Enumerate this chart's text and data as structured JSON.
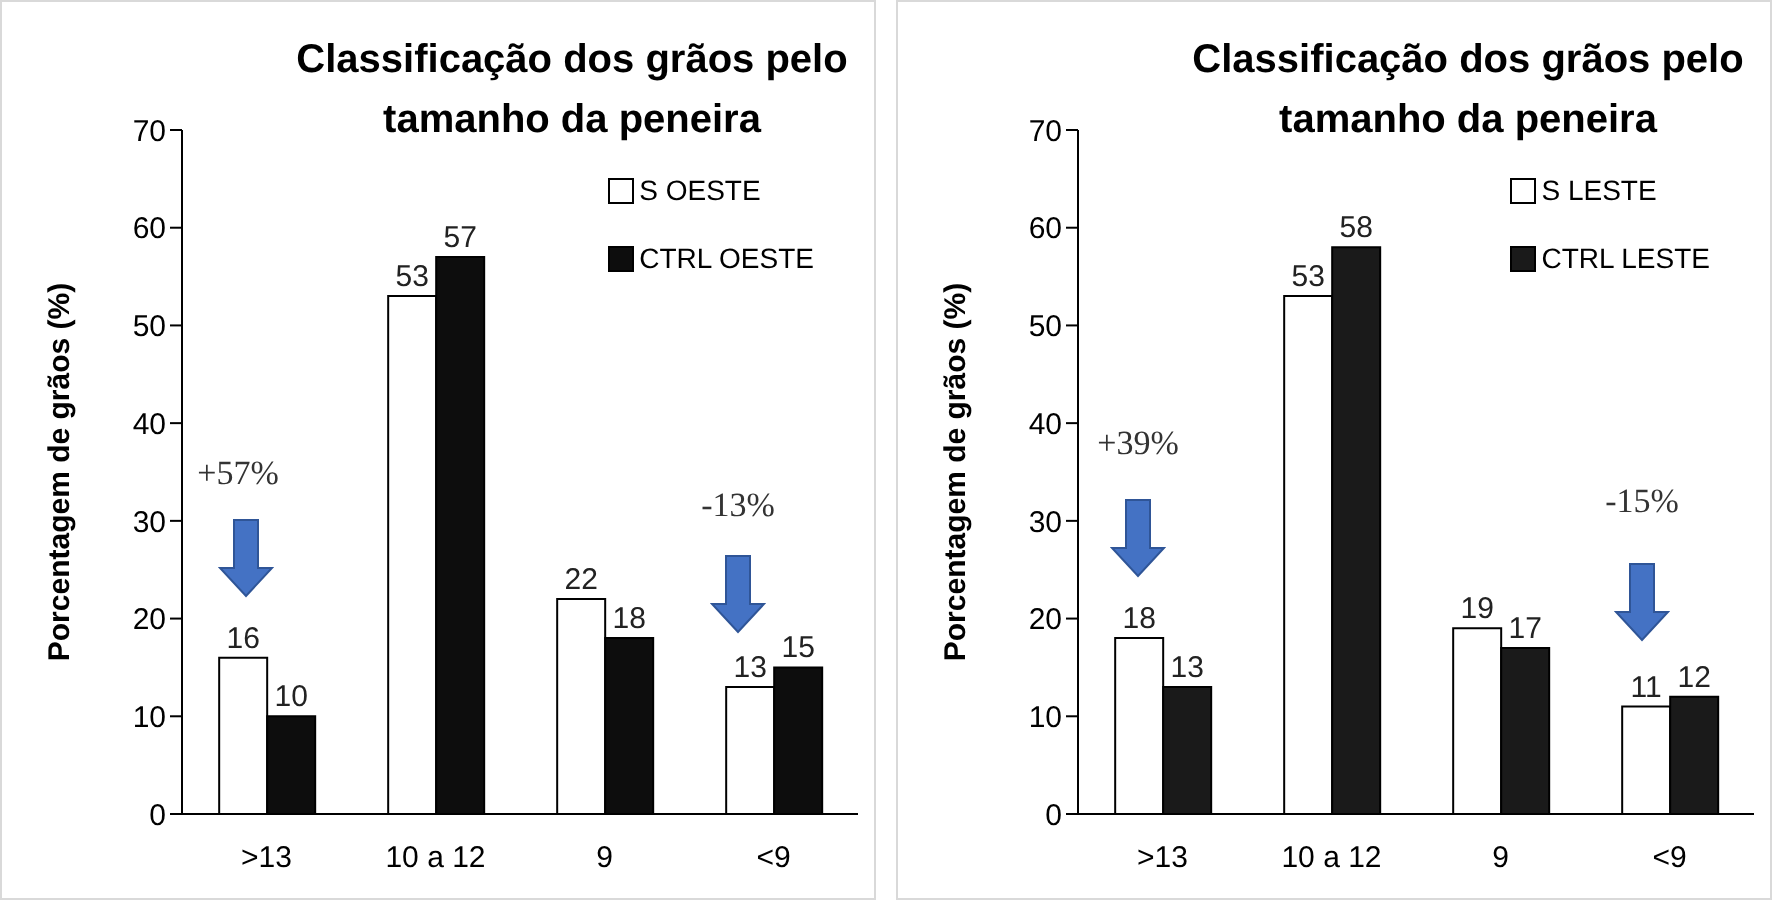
{
  "chart_data": [
    {
      "type": "bar",
      "title": "Classificação  dos grãos pelo tamanho da peneira",
      "ylabel": "Porcentagem de grãos (%)",
      "categories": [
        ">13",
        "10 a 12",
        "9",
        "<9"
      ],
      "series": [
        {
          "name": "S OESTE",
          "color": "#ffffff",
          "values": [
            16,
            53,
            22,
            13
          ]
        },
        {
          "name": "CTRL OESTE",
          "color": "#0d0d0d",
          "values": [
            10,
            57,
            18,
            15
          ]
        }
      ],
      "ylim": [
        0,
        70
      ],
      "yticks": [
        0,
        10,
        20,
        30,
        40,
        50,
        60,
        70
      ],
      "grid": false,
      "legend": "top right",
      "data_labels": true,
      "annotations": [
        "+57%",
        "-13%"
      ]
    },
    {
      "type": "bar",
      "title": "Classificação  dos grãos pelo tamanho da peneira",
      "ylabel": "Porcentagem de grãos (%)",
      "categories": [
        ">13",
        "10 a 12",
        "9",
        "<9"
      ],
      "series": [
        {
          "name": "S LESTE",
          "color": "#ffffff",
          "values": [
            18,
            53,
            19,
            11
          ]
        },
        {
          "name": "CTRL LESTE",
          "color": "#1a1a1a",
          "values": [
            13,
            58,
            17,
            12
          ]
        }
      ],
      "ylim": [
        0,
        70
      ],
      "yticks": [
        0,
        10,
        20,
        30,
        40,
        50,
        60,
        70
      ],
      "grid": false,
      "legend": "top right",
      "data_labels": true,
      "annotations": [
        "+39%",
        "-15%"
      ]
    }
  ]
}
